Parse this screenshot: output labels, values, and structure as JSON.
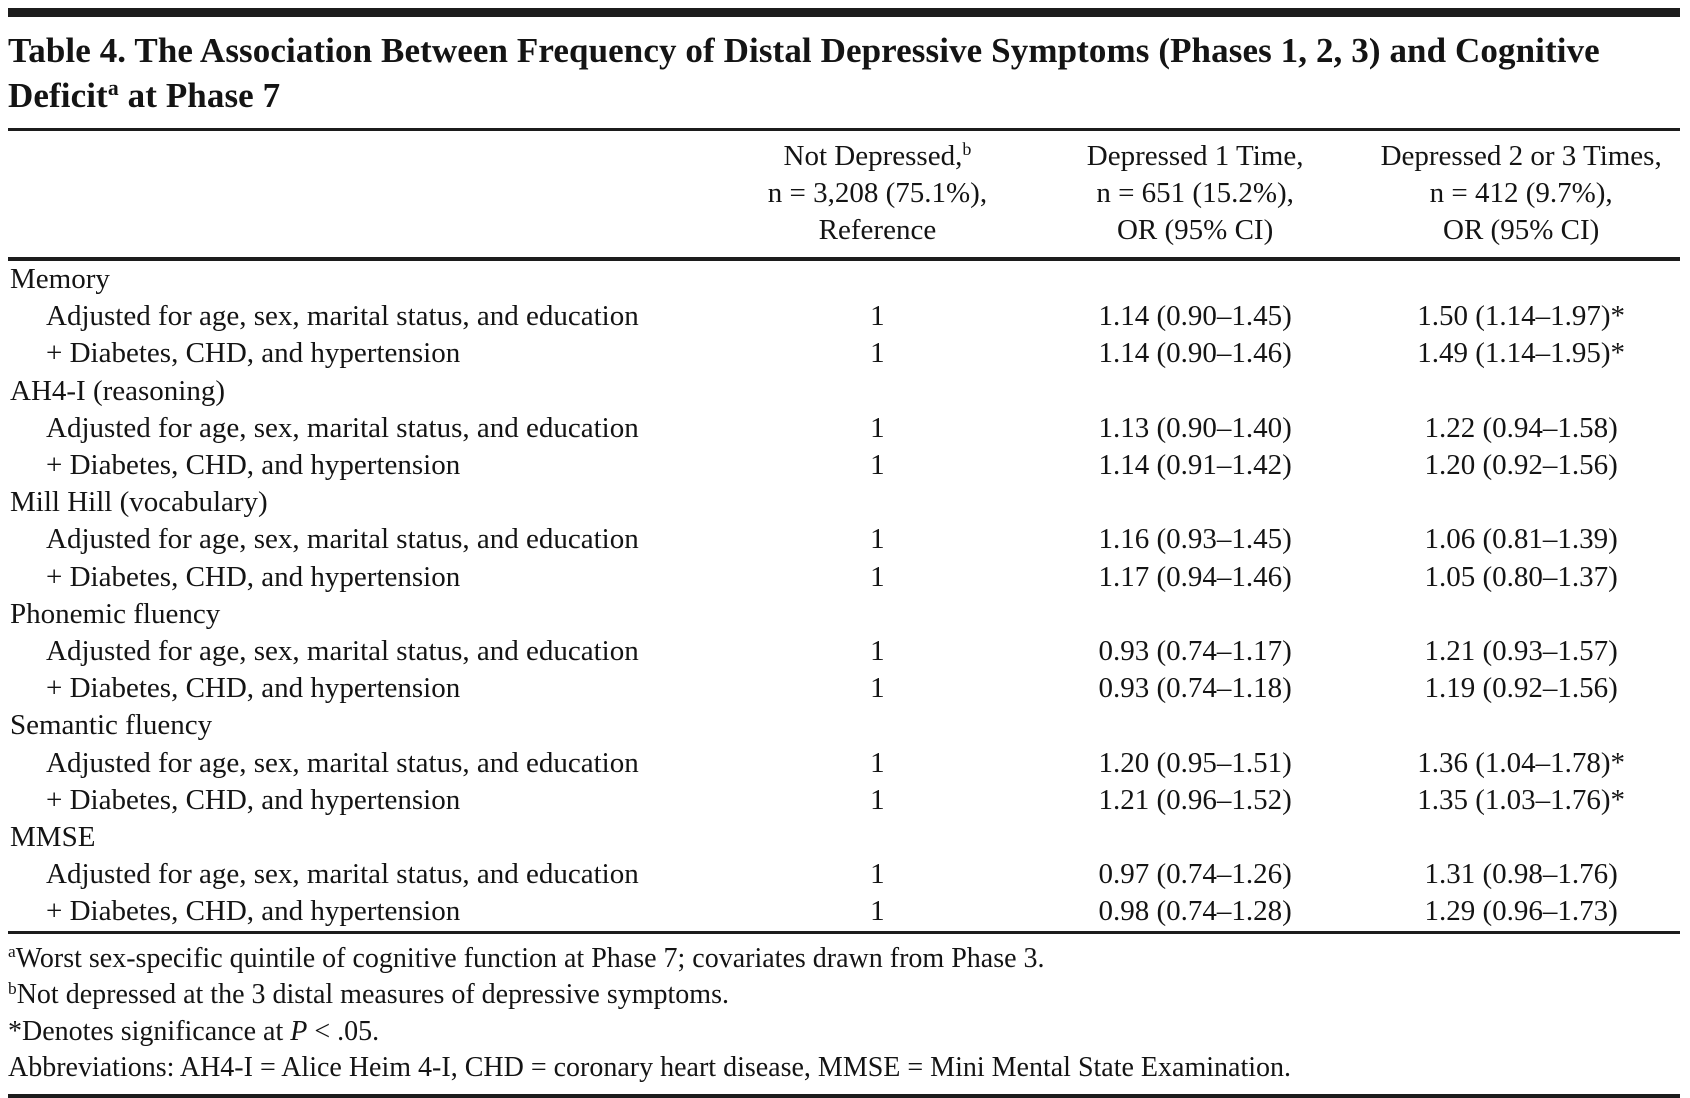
{
  "title": {
    "main": "Table 4. The Association Between Frequency of Distal Depressive Symptoms (Phases 1, 2, 3) and Cognitive Deficit",
    "sup": "a",
    "tail": " at Phase 7"
  },
  "columns": [
    {
      "line1": "Not Depressed,",
      "sup": "b",
      "line2": "n = 3,208 (75.1%),",
      "line3": "Reference"
    },
    {
      "line1": "Depressed 1 Time,",
      "line2": "n = 651 (15.2%),",
      "line3": "OR (95% CI)"
    },
    {
      "line1": "Depressed 2 or 3 Times,",
      "line2": "n = 412 (9.7%),",
      "line3": "OR (95% CI)"
    }
  ],
  "sections": [
    {
      "name": "Memory",
      "rows": [
        {
          "label": "Adjusted for age, sex, marital status, and education",
          "ref": "1",
          "dep1": "1.14 (0.90–1.45)",
          "dep23": "1.50 (1.14–1.97)*"
        },
        {
          "label": "+ Diabetes, CHD, and hypertension",
          "ref": "1",
          "dep1": "1.14 (0.90–1.46)",
          "dep23": "1.49 (1.14–1.95)*"
        }
      ]
    },
    {
      "name": "AH4-I (reasoning)",
      "rows": [
        {
          "label": "Adjusted for age, sex, marital status, and education",
          "ref": "1",
          "dep1": "1.13 (0.90–1.40)",
          "dep23": "1.22 (0.94–1.58)"
        },
        {
          "label": "+ Diabetes, CHD, and hypertension",
          "ref": "1",
          "dep1": "1.14 (0.91–1.42)",
          "dep23": "1.20 (0.92–1.56)"
        }
      ]
    },
    {
      "name": "Mill Hill (vocabulary)",
      "rows": [
        {
          "label": "Adjusted for age, sex, marital status, and education",
          "ref": "1",
          "dep1": "1.16 (0.93–1.45)",
          "dep23": "1.06 (0.81–1.39)"
        },
        {
          "label": "+ Diabetes, CHD, and hypertension",
          "ref": "1",
          "dep1": "1.17 (0.94–1.46)",
          "dep23": "1.05 (0.80–1.37)"
        }
      ]
    },
    {
      "name": "Phonemic fluency",
      "rows": [
        {
          "label": "Adjusted for age, sex, marital status, and education",
          "ref": "1",
          "dep1": "0.93 (0.74–1.17)",
          "dep23": "1.21 (0.93–1.57)"
        },
        {
          "label": "+ Diabetes, CHD, and hypertension",
          "ref": "1",
          "dep1": "0.93 (0.74–1.18)",
          "dep23": "1.19 (0.92–1.56)"
        }
      ]
    },
    {
      "name": "Semantic fluency",
      "rows": [
        {
          "label": "Adjusted for age, sex, marital status, and education",
          "ref": "1",
          "dep1": "1.20 (0.95–1.51)",
          "dep23": "1.36 (1.04–1.78)*"
        },
        {
          "label": "+ Diabetes, CHD, and hypertension",
          "ref": "1",
          "dep1": "1.21 (0.96–1.52)",
          "dep23": "1.35 (1.03–1.76)*"
        }
      ]
    },
    {
      "name": "MMSE",
      "rows": [
        {
          "label": "Adjusted for age, sex, marital status, and education",
          "ref": "1",
          "dep1": "0.97 (0.74–1.26)",
          "dep23": "1.31 (0.98–1.76)"
        },
        {
          "label": "+ Diabetes, CHD, and hypertension",
          "ref": "1",
          "dep1": "0.98 (0.74–1.28)",
          "dep23": "1.29 (0.96–1.73)"
        }
      ]
    }
  ],
  "footnotes": {
    "a": {
      "sup": "a",
      "text": "Worst sex-specific quintile of cognitive function at Phase 7; covariates drawn from Phase 3."
    },
    "b": {
      "sup": "b",
      "text": "Not depressed at the 3 distal measures of depressive symptoms."
    },
    "sig": {
      "pre": "*Denotes significance at ",
      "p": "P",
      "post": " < .05."
    },
    "abbrev": "Abbreviations: AH4-I = Alice Heim 4-I, CHD = coronary heart disease, MMSE = Mini Mental State Examination."
  }
}
